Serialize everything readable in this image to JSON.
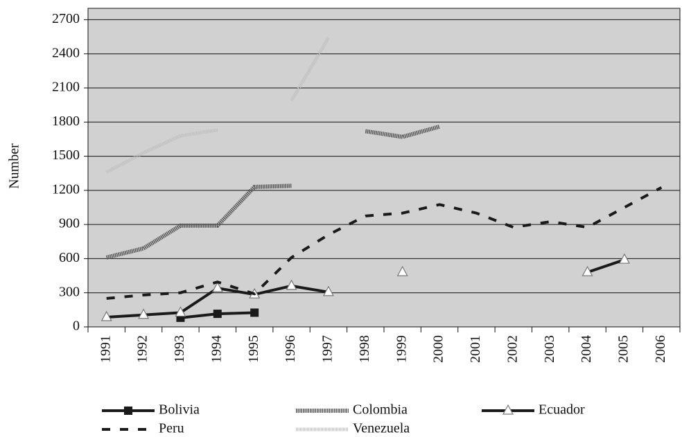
{
  "chart_data": {
    "type": "line",
    "y_label": "Number",
    "categories": [
      "1991",
      "1992",
      "1993",
      "1994",
      "1995",
      "1996",
      "1997",
      "1998",
      "1999",
      "2000",
      "2001",
      "2002",
      "2003",
      "2004",
      "2005",
      "2006"
    ],
    "ylim": [
      0,
      2800
    ],
    "yticks": [
      0,
      300,
      600,
      900,
      1200,
      1500,
      1800,
      2100,
      2400,
      2700
    ],
    "grid": true,
    "legend": "bottom",
    "series": [
      {
        "name": "Bolivia",
        "color": "#1a1a1a",
        "dash": "solid",
        "marker": "square",
        "values": [
          null,
          null,
          80,
          115,
          125,
          null,
          null,
          null,
          null,
          null,
          null,
          null,
          null,
          null,
          null,
          null
        ]
      },
      {
        "name": "Colombia",
        "color": "#555555",
        "dash": "hatched",
        "marker": "none",
        "values": [
          610,
          690,
          890,
          890,
          1230,
          1240,
          null,
          1720,
          1670,
          1760,
          null,
          null,
          null,
          null,
          null,
          null
        ]
      },
      {
        "name": "Ecuador",
        "color": "#1a1a1a",
        "dash": "solid",
        "marker": "triangle",
        "values": [
          85,
          105,
          125,
          340,
          285,
          360,
          305,
          null,
          480,
          null,
          null,
          null,
          null,
          480,
          590,
          null
        ]
      },
      {
        "name": "Peru",
        "color": "#1a1a1a",
        "dash": "dashed",
        "marker": "none",
        "values": [
          250,
          280,
          300,
          395,
          290,
          610,
          810,
          975,
          1000,
          1075,
          1000,
          875,
          925,
          875,
          1050,
          1225
        ]
      },
      {
        "name": "Venezuela",
        "color": "#bdbdbd",
        "dash": "dotted",
        "marker": "none",
        "values": [
          1360,
          1530,
          1680,
          1730,
          null,
          1990,
          2540,
          null,
          null,
          null,
          null,
          null,
          null,
          null,
          null,
          null
        ]
      }
    ]
  }
}
